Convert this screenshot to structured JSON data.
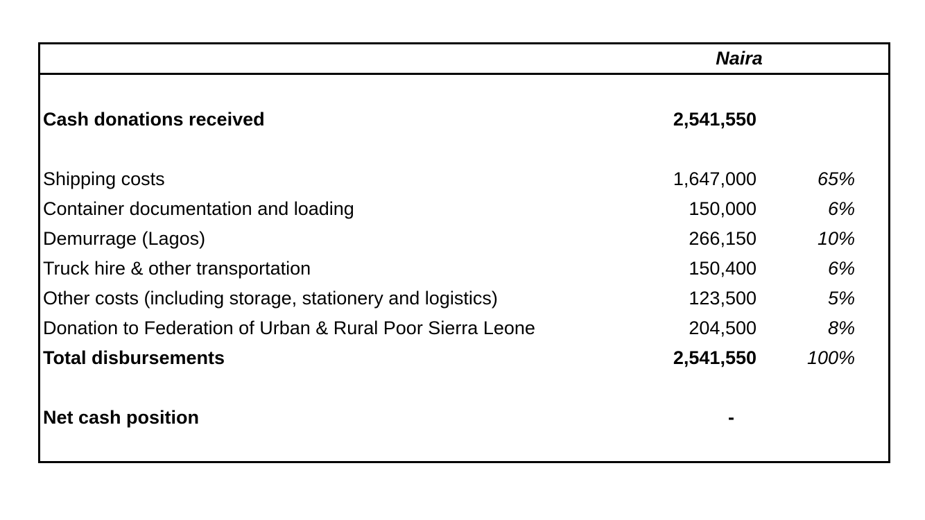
{
  "table": {
    "currency_header": "Naira",
    "income_row": {
      "label": "Cash donations received",
      "amount": "2,541,550"
    },
    "disbursement_rows": [
      {
        "label": "Shipping costs",
        "amount": "1,647,000",
        "percent": "65%"
      },
      {
        "label": "Container documentation and loading",
        "amount": "150,000",
        "percent": "6%"
      },
      {
        "label": "Demurrage (Lagos)",
        "amount": "266,150",
        "percent": "10%"
      },
      {
        "label": "Truck hire & other transportation",
        "amount": "150,400",
        "percent": "6%"
      },
      {
        "label": "Other costs (including storage, stationery and logistics)",
        "amount": "123,500",
        "percent": "5%"
      },
      {
        "label": "Donation to Federation of Urban & Rural Poor Sierra Leone",
        "amount": "204,500",
        "percent": "8%"
      }
    ],
    "total_row": {
      "label": "Total disbursements",
      "amount": "2,541,550",
      "percent": "100%"
    },
    "net_row": {
      "label": "Net cash position",
      "amount": "-"
    }
  }
}
